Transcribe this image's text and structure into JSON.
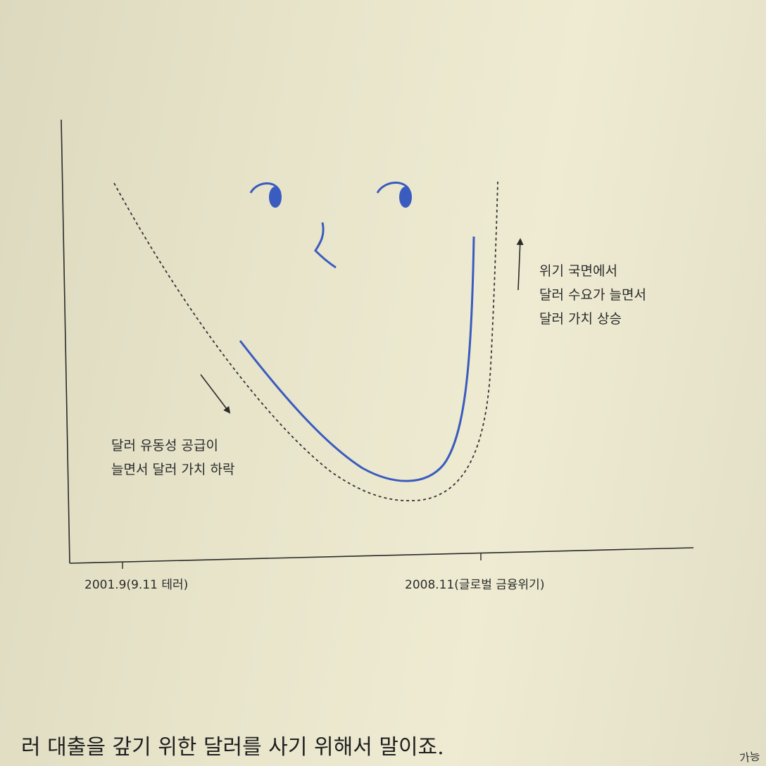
{
  "annotations": {
    "falling": [
      "달러 유동성 공급이",
      "늘면서 달러 가치 하락"
    ],
    "rising": [
      "위기 국면에서",
      "달러 수요가 늘면서",
      "달러 가치 상승"
    ]
  },
  "x_ticks": [
    "2001.9(9.11 테러)",
    "2008.11(글로벌 금융위기)"
  ],
  "body_text": "러 대출을 갚기 위한 달러를 사기 위해서 말이죠.",
  "corner_text": "가능",
  "colors": {
    "smile_curve": "#3a5bbf",
    "dashed_curve": "#333333",
    "axes": "#2a2a2a"
  },
  "icons": [
    "eye-left-icon",
    "eye-right-icon",
    "nose-icon",
    "arrow-down-right-icon",
    "arrow-up-icon"
  ]
}
